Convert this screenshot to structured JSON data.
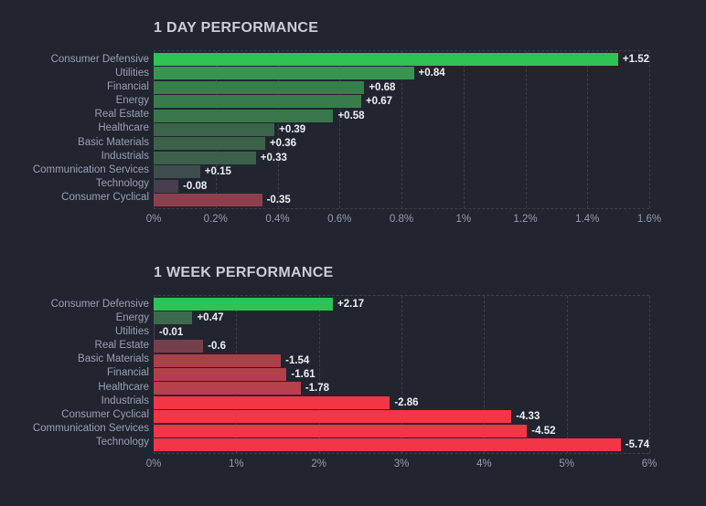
{
  "page": {
    "background": "#212530",
    "colors": {
      "positive_bright": "#2EC353",
      "negative_bright": "#F23645",
      "gridline": "#3A404C",
      "category_label": "#99A0AF",
      "value_label": "#EDEFF4",
      "title": "#C9CDD8"
    }
  },
  "chart_data": [
    {
      "type": "bar",
      "orientation": "horizontal",
      "title": "1 DAY PERFORMANCE",
      "xlabel": "",
      "ylabel": "",
      "xlim": [
        0,
        1.6
      ],
      "x_ticks": [
        "0%",
        "0.2%",
        "0.4%",
        "0.6%",
        "0.8%",
        "1%",
        "1.2%",
        "1.4%",
        "1.6%"
      ],
      "grid": "dashed-vertical",
      "legend": "none",
      "bars": [
        {
          "label": "Consumer Defensive",
          "value": 1.52,
          "display": "+1.52",
          "color": "#2EC353"
        },
        {
          "label": "Utilities",
          "value": 0.84,
          "display": "+0.84",
          "color": "#38954F"
        },
        {
          "label": "Financial",
          "value": 0.68,
          "display": "+0.68",
          "color": "#387D4C"
        },
        {
          "label": "Energy",
          "value": 0.67,
          "display": "+0.67",
          "color": "#387C4C"
        },
        {
          "label": "Real Estate",
          "value": 0.58,
          "display": "+0.58",
          "color": "#39764B"
        },
        {
          "label": "Healthcare",
          "value": 0.39,
          "display": "+0.39",
          "color": "#3B654B"
        },
        {
          "label": "Basic Materials",
          "value": 0.36,
          "display": "+0.36",
          "color": "#3B634A"
        },
        {
          "label": "Industrials",
          "value": 0.33,
          "display": "+0.33",
          "color": "#3C614A"
        },
        {
          "label": "Communication Services",
          "value": 0.15,
          "display": "+0.15",
          "color": "#3E4E4C"
        },
        {
          "label": "Technology",
          "value": -0.08,
          "display": "-0.08",
          "color": "#473E4E"
        },
        {
          "label": "Consumer Cyclical",
          "value": -0.35,
          "display": "-0.35",
          "color": "#8E3F4E"
        }
      ]
    },
    {
      "type": "bar",
      "orientation": "horizontal",
      "title": "1 WEEK PERFORMANCE",
      "xlabel": "",
      "ylabel": "",
      "xlim": [
        0,
        6
      ],
      "x_ticks": [
        "0%",
        "1%",
        "2%",
        "3%",
        "4%",
        "5%",
        "6%"
      ],
      "grid": "dashed-vertical",
      "legend": "none",
      "bars": [
        {
          "label": "Consumer Defensive",
          "value": 2.17,
          "display": "+2.17",
          "color": "#2EC353"
        },
        {
          "label": "Energy",
          "value": 0.47,
          "display": "+0.47",
          "color": "#3D6A4D"
        },
        {
          "label": "Utilities",
          "value": -0.01,
          "display": "-0.01",
          "color": "#3E4550"
        },
        {
          "label": "Real Estate",
          "value": -0.6,
          "display": "-0.6",
          "color": "#75404B"
        },
        {
          "label": "Basic Materials",
          "value": -1.54,
          "display": "-1.54",
          "color": "#AC4049"
        },
        {
          "label": "Financial",
          "value": -1.61,
          "display": "-1.61",
          "color": "#B0414A"
        },
        {
          "label": "Healthcare",
          "value": -1.78,
          "display": "-1.78",
          "color": "#B6414A"
        },
        {
          "label": "Industrials",
          "value": -2.86,
          "display": "-2.86",
          "color": "#F23645"
        },
        {
          "label": "Consumer Cyclical",
          "value": -4.33,
          "display": "-4.33",
          "color": "#F23645"
        },
        {
          "label": "Communication Services",
          "value": -4.52,
          "display": "-4.52",
          "color": "#F23645"
        },
        {
          "label": "Technology",
          "value": -5.74,
          "display": "-5.74",
          "color": "#F23645"
        }
      ]
    }
  ]
}
